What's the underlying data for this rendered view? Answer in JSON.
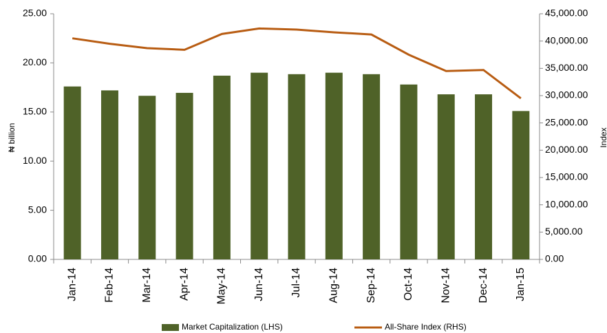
{
  "chart_data": {
    "type": "bar-line",
    "categories": [
      "Jan-14",
      "Feb-14",
      "Mar-14",
      "Apr-14",
      "May-14",
      "Jun-14",
      "Jul-14",
      "Aug-14",
      "Sep-14",
      "Oct-14",
      "Nov-14",
      "Dec-14",
      "Jan-15"
    ],
    "series": [
      {
        "name": "Market Capitalization (LHS)",
        "type": "bar",
        "color": "#4f6228",
        "values": [
          17.6,
          17.2,
          16.65,
          16.95,
          18.7,
          19.0,
          18.85,
          19.0,
          18.85,
          17.8,
          16.8,
          16.8,
          15.1
        ]
      },
      {
        "name": "All-Share Index (RHS)",
        "type": "line",
        "axis": "y2",
        "color": "#b85c12",
        "values": [
          40500,
          39500,
          38700,
          38400,
          41300,
          42300,
          42100,
          41600,
          41200,
          37500,
          34500,
          34700,
          29500
        ]
      }
    ],
    "ylabel": "₦ billion",
    "y2label": "Index",
    "ylim": [
      0,
      25
    ],
    "yticks": [
      {
        "value": 0,
        "label": "0.00"
      },
      {
        "value": 5,
        "label": "5.00"
      },
      {
        "value": 10,
        "label": "10.00"
      },
      {
        "value": 15,
        "label": "15.00"
      },
      {
        "value": 20,
        "label": "20.00"
      },
      {
        "value": 25,
        "label": "25.00"
      }
    ],
    "y2lim": [
      0,
      45000
    ],
    "y2ticks": [
      {
        "value": 0,
        "label": "0.00"
      },
      {
        "value": 5000,
        "label": "5,000.00"
      },
      {
        "value": 10000,
        "label": "10,000.00"
      },
      {
        "value": 15000,
        "label": "15,000.00"
      },
      {
        "value": 20000,
        "label": "20,000.00"
      },
      {
        "value": 25000,
        "label": "25,000.00"
      },
      {
        "value": 30000,
        "label": "30,000.00"
      },
      {
        "value": 35000,
        "label": "35,000.00"
      },
      {
        "value": 40000,
        "label": "40,000.00"
      },
      {
        "value": 45000,
        "label": "45,000.00"
      }
    ],
    "legend": "bottom"
  }
}
